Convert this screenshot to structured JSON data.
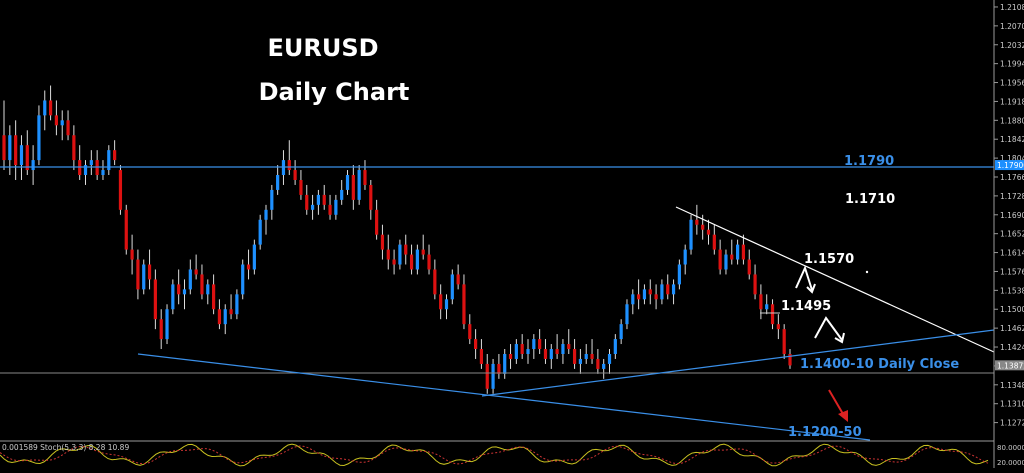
{
  "chart_data": {
    "type": "candlestick",
    "title_line1": "EURUSD",
    "title_line2": "Daily Chart",
    "colors": {
      "bull": "#1e90ff",
      "bear": "#dd1111",
      "wick": "#dddddd",
      "background": "#000000"
    },
    "price_axis": {
      "range": [
        1.1237,
        1.2118
      ],
      "ticks": [
        "1.21080",
        "1.20700",
        "1.20320",
        "1.19940",
        "1.19560",
        "1.19180",
        "1.18800",
        "1.18420",
        "1.18040",
        "1.17660",
        "1.17280",
        "1.16900",
        "1.16520",
        "1.16140",
        "1.15760",
        "1.15380",
        "1.15000",
        "1.14620",
        "1.14240",
        "1.13860",
        "1.13480",
        "1.13100",
        "1.12720"
      ],
      "current_labels": [
        {
          "text": "1.17900",
          "price": 1.179,
          "color": "#1e90ff"
        },
        {
          "text": "1.13872",
          "price": 1.13872,
          "color": "#888888"
        }
      ]
    },
    "levels": [
      {
        "label": "1.1790",
        "price": 1.179,
        "color": "#3a8fe8",
        "style": "line"
      },
      {
        "label": "1.1710",
        "price": 1.171,
        "color": "#ffffff",
        "style": "text"
      },
      {
        "label": "1.1570",
        "price": 1.157,
        "color": "#ffffff",
        "style": "text"
      },
      {
        "label": "1.1495",
        "price": 1.1495,
        "color": "#ffffff",
        "style": "text"
      },
      {
        "label": "1.1400-10 Daily Close",
        "price": 1.14,
        "color": "#3a8fe8",
        "style": "text"
      },
      {
        "label": "1.1200-50",
        "price": 1.1225,
        "color": "#3a8fe8",
        "style": "text"
      }
    ],
    "indicator_label": "0.001589 Stoch(5,3,3) 8.28 10.89",
    "indicator_scale": [
      "80.0000",
      "20.0000"
    ],
    "candles": [
      [
        1.185,
        1.192,
        1.178,
        1.18
      ],
      [
        1.18,
        1.187,
        1.177,
        1.185
      ],
      [
        1.185,
        1.188,
        1.176,
        1.179
      ],
      [
        1.179,
        1.185,
        1.176,
        1.183
      ],
      [
        1.183,
        1.186,
        1.177,
        1.178
      ],
      [
        1.178,
        1.183,
        1.175,
        1.18
      ],
      [
        1.18,
        1.191,
        1.179,
        1.189
      ],
      [
        1.189,
        1.194,
        1.186,
        1.192
      ],
      [
        1.192,
        1.195,
        1.188,
        1.189
      ],
      [
        1.189,
        1.192,
        1.185,
        1.187
      ],
      [
        1.187,
        1.19,
        1.184,
        1.188
      ],
      [
        1.188,
        1.19,
        1.184,
        1.185
      ],
      [
        1.185,
        1.187,
        1.178,
        1.18
      ],
      [
        1.18,
        1.183,
        1.176,
        1.177
      ],
      [
        1.177,
        1.18,
        1.175,
        1.179
      ],
      [
        1.179,
        1.182,
        1.177,
        1.18
      ],
      [
        1.18,
        1.182,
        1.176,
        1.177
      ],
      [
        1.177,
        1.18,
        1.176,
        1.178
      ],
      [
        1.178,
        1.183,
        1.177,
        1.182
      ],
      [
        1.182,
        1.184,
        1.179,
        1.18
      ],
      [
        1.178,
        1.179,
        1.169,
        1.17
      ],
      [
        1.17,
        1.171,
        1.161,
        1.162
      ],
      [
        1.162,
        1.165,
        1.157,
        1.16
      ],
      [
        1.16,
        1.162,
        1.152,
        1.154
      ],
      [
        1.154,
        1.16,
        1.153,
        1.159
      ],
      [
        1.159,
        1.162,
        1.154,
        1.156
      ],
      [
        1.156,
        1.158,
        1.146,
        1.148
      ],
      [
        1.148,
        1.15,
        1.142,
        1.144
      ],
      [
        1.144,
        1.151,
        1.143,
        1.15
      ],
      [
        1.15,
        1.156,
        1.149,
        1.155
      ],
      [
        1.155,
        1.158,
        1.151,
        1.153
      ],
      [
        1.153,
        1.156,
        1.15,
        1.154
      ],
      [
        1.154,
        1.16,
        1.153,
        1.158
      ],
      [
        1.158,
        1.161,
        1.156,
        1.157
      ],
      [
        1.157,
        1.159,
        1.152,
        1.153
      ],
      [
        1.153,
        1.156,
        1.151,
        1.155
      ],
      [
        1.155,
        1.157,
        1.149,
        1.15
      ],
      [
        1.15,
        1.152,
        1.146,
        1.147
      ],
      [
        1.147,
        1.151,
        1.145,
        1.15
      ],
      [
        1.15,
        1.153,
        1.148,
        1.149
      ],
      [
        1.149,
        1.154,
        1.148,
        1.153
      ],
      [
        1.153,
        1.16,
        1.152,
        1.159
      ],
      [
        1.159,
        1.162,
        1.156,
        1.158
      ],
      [
        1.158,
        1.164,
        1.157,
        1.163
      ],
      [
        1.163,
        1.169,
        1.162,
        1.168
      ],
      [
        1.168,
        1.171,
        1.165,
        1.17
      ],
      [
        1.17,
        1.175,
        1.168,
        1.174
      ],
      [
        1.174,
        1.179,
        1.173,
        1.177
      ],
      [
        1.177,
        1.182,
        1.175,
        1.18
      ],
      [
        1.18,
        1.184,
        1.177,
        1.178
      ],
      [
        1.178,
        1.18,
        1.175,
        1.176
      ],
      [
        1.176,
        1.178,
        1.172,
        1.173
      ],
      [
        1.173,
        1.175,
        1.169,
        1.17
      ],
      [
        1.17,
        1.173,
        1.168,
        1.171
      ],
      [
        1.171,
        1.174,
        1.169,
        1.173
      ],
      [
        1.173,
        1.175,
        1.17,
        1.171
      ],
      [
        1.171,
        1.173,
        1.168,
        1.169
      ],
      [
        1.169,
        1.173,
        1.168,
        1.172
      ],
      [
        1.172,
        1.176,
        1.171,
        1.174
      ],
      [
        1.174,
        1.178,
        1.173,
        1.177
      ],
      [
        1.177,
        1.179,
        1.17,
        1.172
      ],
      [
        1.172,
        1.179,
        1.171,
        1.178
      ],
      [
        1.178,
        1.18,
        1.174,
        1.175
      ],
      [
        1.175,
        1.176,
        1.168,
        1.17
      ],
      [
        1.17,
        1.172,
        1.164,
        1.165
      ],
      [
        1.165,
        1.167,
        1.16,
        1.162
      ],
      [
        1.162,
        1.165,
        1.158,
        1.16
      ],
      [
        1.16,
        1.162,
        1.157,
        1.159
      ],
      [
        1.159,
        1.164,
        1.158,
        1.163
      ],
      [
        1.163,
        1.165,
        1.159,
        1.161
      ],
      [
        1.161,
        1.163,
        1.157,
        1.158
      ],
      [
        1.158,
        1.163,
        1.157,
        1.162
      ],
      [
        1.162,
        1.165,
        1.16,
        1.161
      ],
      [
        1.161,
        1.163,
        1.157,
        1.158
      ],
      [
        1.158,
        1.16,
        1.152,
        1.153
      ],
      [
        1.153,
        1.155,
        1.148,
        1.15
      ],
      [
        1.15,
        1.153,
        1.148,
        1.152
      ],
      [
        1.152,
        1.158,
        1.151,
        1.157
      ],
      [
        1.157,
        1.159,
        1.154,
        1.155
      ],
      [
        1.155,
        1.157,
        1.146,
        1.147
      ],
      [
        1.147,
        1.149,
        1.143,
        1.144
      ],
      [
        1.144,
        1.146,
        1.14,
        1.142
      ],
      [
        1.142,
        1.144,
        1.138,
        1.139
      ],
      [
        1.139,
        1.141,
        1.133,
        1.134
      ],
      [
        1.134,
        1.14,
        1.133,
        1.139
      ],
      [
        1.139,
        1.141,
        1.136,
        1.137
      ],
      [
        1.137,
        1.142,
        1.136,
        1.141
      ],
      [
        1.141,
        1.143,
        1.138,
        1.14
      ],
      [
        1.14,
        1.144,
        1.139,
        1.143
      ],
      [
        1.143,
        1.145,
        1.14,
        1.141
      ],
      [
        1.141,
        1.144,
        1.139,
        1.142
      ],
      [
        1.142,
        1.145,
        1.14,
        1.144
      ],
      [
        1.144,
        1.146,
        1.141,
        1.142
      ],
      [
        1.142,
        1.144,
        1.139,
        1.14
      ],
      [
        1.14,
        1.143,
        1.138,
        1.142
      ],
      [
        1.142,
        1.145,
        1.14,
        1.141
      ],
      [
        1.141,
        1.144,
        1.139,
        1.143
      ],
      [
        1.143,
        1.146,
        1.141,
        1.142
      ],
      [
        1.142,
        1.144,
        1.138,
        1.139
      ],
      [
        1.139,
        1.142,
        1.137,
        1.14
      ],
      [
        1.14,
        1.143,
        1.139,
        1.141
      ],
      [
        1.141,
        1.144,
        1.139,
        1.14
      ],
      [
        1.14,
        1.142,
        1.137,
        1.138
      ],
      [
        1.138,
        1.14,
        1.136,
        1.139
      ],
      [
        1.139,
        1.142,
        1.137,
        1.141
      ],
      [
        1.141,
        1.145,
        1.14,
        1.144
      ],
      [
        1.144,
        1.148,
        1.143,
        1.147
      ],
      [
        1.147,
        1.152,
        1.146,
        1.151
      ],
      [
        1.151,
        1.154,
        1.149,
        1.153
      ],
      [
        1.153,
        1.156,
        1.15,
        1.152
      ],
      [
        1.152,
        1.155,
        1.151,
        1.154
      ],
      [
        1.154,
        1.156,
        1.151,
        1.153
      ],
      [
        1.153,
        1.155,
        1.15,
        1.152
      ],
      [
        1.152,
        1.156,
        1.151,
        1.155
      ],
      [
        1.155,
        1.157,
        1.152,
        1.153
      ],
      [
        1.153,
        1.156,
        1.151,
        1.155
      ],
      [
        1.155,
        1.16,
        1.154,
        1.159
      ],
      [
        1.159,
        1.163,
        1.157,
        1.162
      ],
      [
        1.162,
        1.169,
        1.161,
        1.168
      ],
      [
        1.168,
        1.171,
        1.165,
        1.167
      ],
      [
        1.167,
        1.169,
        1.164,
        1.166
      ],
      [
        1.166,
        1.168,
        1.163,
        1.165
      ],
      [
        1.165,
        1.167,
        1.161,
        1.162
      ],
      [
        1.162,
        1.164,
        1.157,
        1.158
      ],
      [
        1.158,
        1.162,
        1.157,
        1.161
      ],
      [
        1.161,
        1.164,
        1.159,
        1.16
      ],
      [
        1.16,
        1.164,
        1.159,
        1.163
      ],
      [
        1.163,
        1.165,
        1.159,
        1.16
      ],
      [
        1.16,
        1.162,
        1.156,
        1.157
      ],
      [
        1.157,
        1.159,
        1.152,
        1.153
      ],
      [
        1.153,
        1.155,
        1.148,
        1.15
      ],
      [
        1.15,
        1.153,
        1.149,
        1.151
      ],
      [
        1.151,
        1.152,
        1.146,
        1.147
      ],
      [
        1.147,
        1.149,
        1.144,
        1.146
      ],
      [
        1.146,
        1.147,
        1.14,
        1.141
      ],
      [
        1.141,
        1.142,
        1.138,
        1.1387
      ]
    ]
  }
}
